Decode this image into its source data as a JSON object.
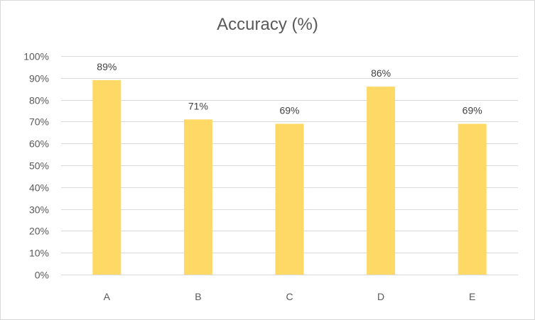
{
  "chart_data": {
    "type": "bar",
    "title": "Accuracy (%)",
    "xlabel": "",
    "ylabel": "",
    "categories": [
      "A",
      "B",
      "C",
      "D",
      "E"
    ],
    "values": [
      89,
      71,
      69,
      86,
      69
    ],
    "data_labels": [
      "89%",
      "71%",
      "69%",
      "86%",
      "69%"
    ],
    "ylim": [
      0,
      100
    ],
    "yticks": [
      0,
      10,
      20,
      30,
      40,
      50,
      60,
      70,
      80,
      90,
      100
    ],
    "ytick_labels": [
      "0%",
      "10%",
      "20%",
      "30%",
      "40%",
      "50%",
      "60%",
      "70%",
      "80%",
      "90%",
      "100%"
    ],
    "grid": true,
    "legend": "none",
    "bar_color": "#ffd966",
    "grid_color": "#d9d9d9",
    "text_color": "#595959"
  }
}
